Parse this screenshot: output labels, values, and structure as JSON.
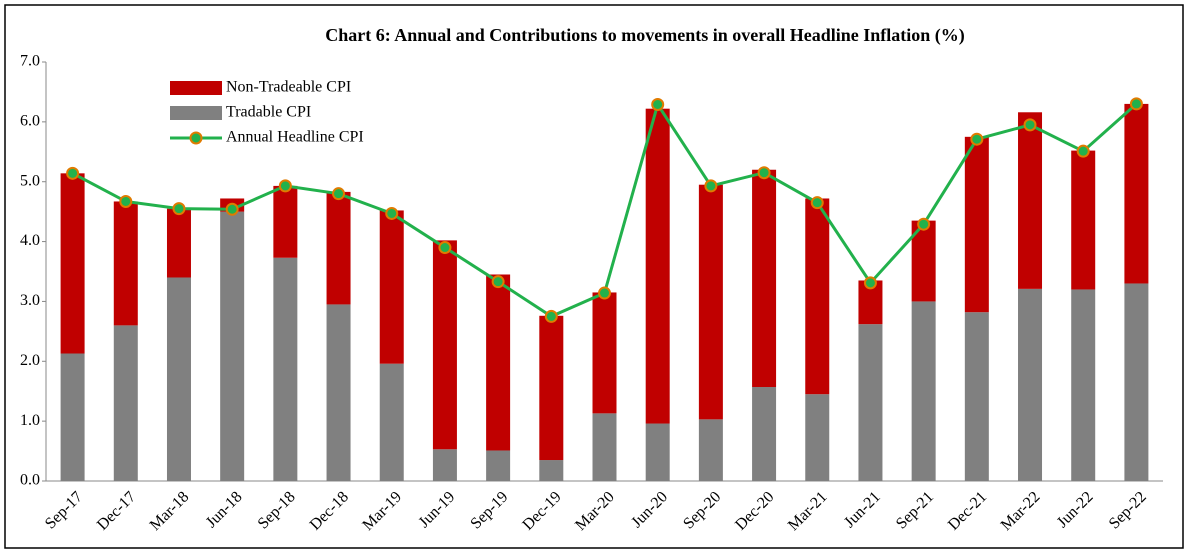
{
  "chart_data": {
    "type": "stacked_bar_line",
    "title": "Chart 6: Annual and Contributions to movements in overall Headline Inflation (%)",
    "categories": [
      "Sep-17",
      "Dec-17",
      "Mar-18",
      "Jun-18",
      "Sep-18",
      "Dec-18",
      "Mar-19",
      "Jun-19",
      "Sep-19",
      "Dec-19",
      "Mar-20",
      "Jun-20",
      "Sep-20",
      "Dec-20",
      "Mar-21",
      "Jun-21",
      "Sep-21",
      "Dec-21",
      "Mar-22",
      "Jun-22",
      "Sep-22"
    ],
    "series": [
      {
        "name": "Tradable CPI",
        "color": "#808080",
        "kind": "bar",
        "values": [
          2.13,
          2.6,
          3.4,
          4.5,
          3.73,
          2.95,
          1.96,
          0.53,
          0.51,
          0.35,
          1.13,
          0.96,
          1.03,
          1.57,
          1.45,
          2.62,
          3.0,
          2.82,
          3.21,
          3.2,
          3.3
        ]
      },
      {
        "name": "Non-Tradeable CPI",
        "color": "#c00000",
        "kind": "bar",
        "values": [
          3.01,
          2.07,
          1.15,
          0.22,
          1.2,
          1.88,
          2.56,
          3.49,
          2.94,
          2.41,
          2.02,
          5.26,
          3.92,
          3.63,
          3.27,
          0.73,
          1.35,
          2.93,
          2.95,
          2.32,
          3.0
        ]
      },
      {
        "name": "Annual Headline CPI",
        "color": "#22b14c",
        "marker_color": "#e07b00",
        "kind": "line",
        "values": [
          5.14,
          4.67,
          4.55,
          4.54,
          4.93,
          4.8,
          4.47,
          3.9,
          3.33,
          2.75,
          3.14,
          6.29,
          4.93,
          5.15,
          4.65,
          3.31,
          4.29,
          5.71,
          5.95,
          5.51,
          6.3
        ]
      }
    ],
    "ylim": [
      0,
      7
    ],
    "yticks": [
      {
        "value": 0,
        "label": "0.0"
      },
      {
        "value": 1,
        "label": "1.0"
      },
      {
        "value": 2,
        "label": "2.0"
      },
      {
        "value": 3,
        "label": "3.0"
      },
      {
        "value": 4,
        "label": "4.0"
      },
      {
        "value": 5,
        "label": "5.0"
      },
      {
        "value": 6,
        "label": "6.0"
      },
      {
        "value": 7,
        "label": "7.0"
      }
    ],
    "legend_order": [
      1,
      0,
      2
    ]
  }
}
